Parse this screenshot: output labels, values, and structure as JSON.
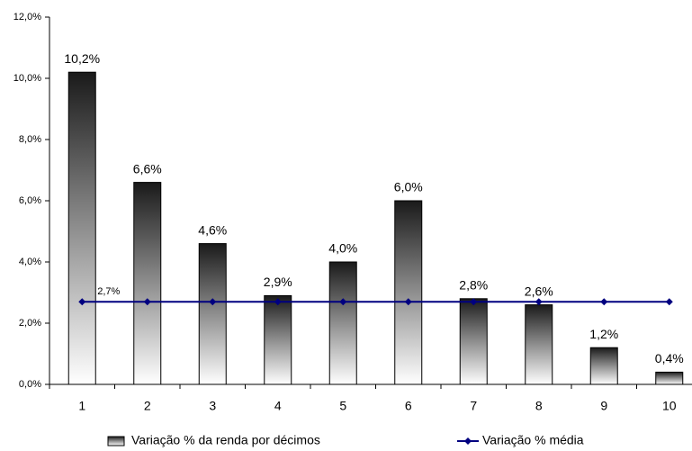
{
  "chart_data": {
    "type": "bar",
    "categories": [
      "1",
      "2",
      "3",
      "4",
      "5",
      "6",
      "7",
      "8",
      "9",
      "10"
    ],
    "series": [
      {
        "name": "Variação % da renda por décimos",
        "type": "bar",
        "color": "#000000",
        "values": [
          10.2,
          6.6,
          4.6,
          2.9,
          4.0,
          6.0,
          2.8,
          2.6,
          1.2,
          0.4
        ],
        "value_labels": [
          "10,2%",
          "6,6%",
          "4,6%",
          "2,9%",
          "4,0%",
          "6,0%",
          "2,8%",
          "2,6%",
          "1,2%",
          "0,4%"
        ]
      },
      {
        "name": "Variação % média",
        "type": "line",
        "color": "#000080",
        "values": [
          2.7,
          2.7,
          2.7,
          2.7,
          2.7,
          2.7,
          2.7,
          2.7,
          2.7,
          2.7
        ],
        "value_labels": [
          "2,7%",
          null,
          null,
          null,
          null,
          null,
          null,
          null,
          null,
          null
        ]
      }
    ],
    "ylim": [
      0,
      12
    ],
    "yticks": [
      {
        "value": 0,
        "label": "0,0%"
      },
      {
        "value": 2,
        "label": "2,0%"
      },
      {
        "value": 4,
        "label": "4,0%"
      },
      {
        "value": 6,
        "label": "6,0%"
      },
      {
        "value": 8,
        "label": "8,0%"
      },
      {
        "value": 10,
        "label": "10,0%"
      },
      {
        "value": 12,
        "label": "12,0%"
      }
    ],
    "legend": "bottom"
  }
}
